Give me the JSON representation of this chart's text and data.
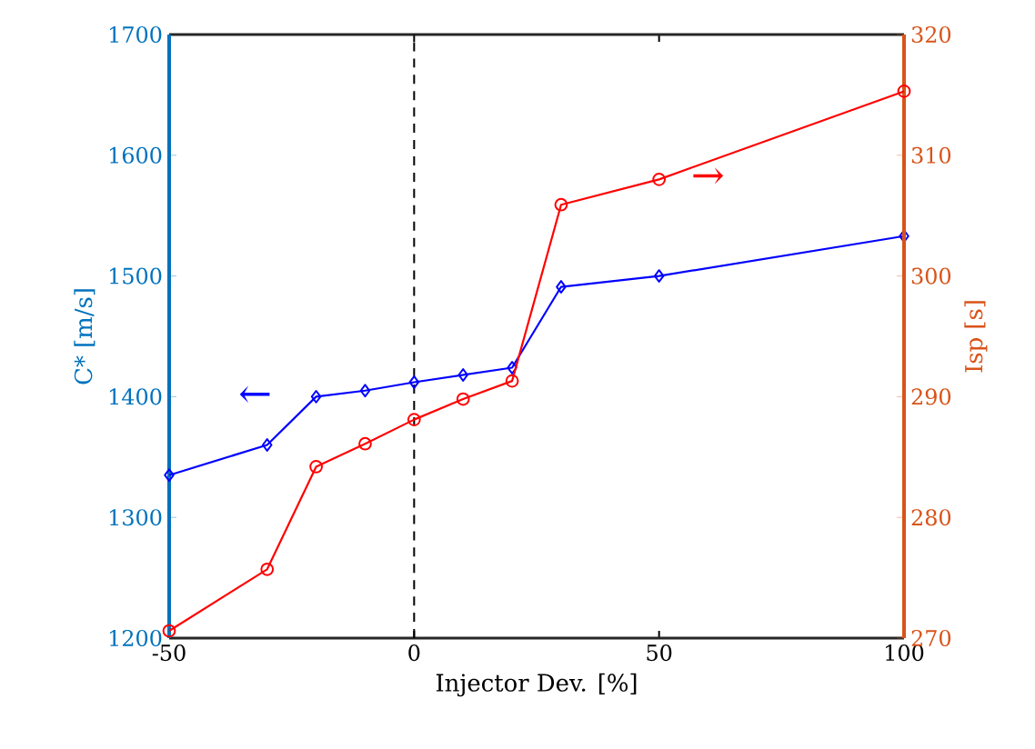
{
  "chart_data": {
    "type": "line",
    "xlabel": "Injector Dev. [%]",
    "ylabel": "C* [m/s]",
    "y2label": "Isp [s]",
    "x": [
      -50,
      -30,
      -20,
      -10,
      0,
      10,
      20,
      30,
      50,
      100
    ],
    "series": [
      {
        "color": "#0000ff",
        "marker": "diamond",
        "values": [
          1335,
          1360,
          1400,
          1405,
          1412,
          1418,
          1424,
          1491,
          1500,
          1533
        ]
      },
      {
        "color": "#ff0000",
        "marker": "circle",
        "axis": "y2",
        "values": [
          270.6,
          275.7,
          284.2,
          286.1,
          288.1,
          289.8,
          291.3,
          305.9,
          308,
          315.3
        ]
      }
    ],
    "xlim": [
      -50,
      100
    ],
    "xticks": [
      -50,
      0,
      50,
      100
    ],
    "ylim": [
      1200,
      1700
    ],
    "yticks": [
      1200,
      1300,
      1400,
      1500,
      1600,
      1700
    ],
    "y2lim": [
      270,
      320
    ],
    "y2ticks": [
      270,
      280,
      290,
      300,
      310,
      320
    ],
    "ref_lines": [
      {
        "axis": "x",
        "value": 0,
        "line_style": "dashed",
        "color": "#000000"
      }
    ],
    "annotations": [
      "←",
      "→"
    ],
    "line_style": "solid",
    "grid": false
  }
}
